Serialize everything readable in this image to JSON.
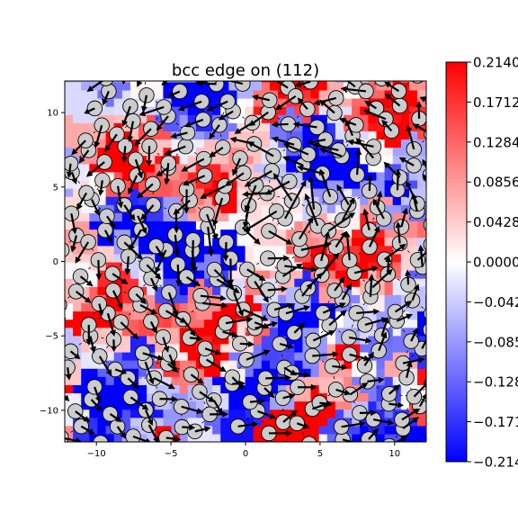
{
  "chart_data": {
    "type": "heatmap",
    "title": "bcc edge on (112)",
    "xlabel": "",
    "ylabel": "",
    "xlim": [
      -12.124,
      12.124
    ],
    "ylim": [
      -12.124,
      12.124
    ],
    "x_ticks": [
      -10,
      -5,
      0,
      5,
      10
    ],
    "y_ticks": [
      -10,
      -5,
      0,
      5,
      10
    ],
    "x_tick_labels": [
      "−10",
      "−5",
      "0",
      "5",
      "10"
    ],
    "y_tick_labels": [
      "−10",
      "−5",
      "0",
      "5",
      "10"
    ],
    "grid": false,
    "colormap": {
      "name": "bwr",
      "colors": [
        "#0000ff",
        "#ffffff",
        "#ff0000"
      ],
      "vmin": -0.214,
      "vmax": 0.214,
      "ticks": [
        0.214,
        0.1712,
        0.1284,
        0.0856,
        0.0428,
        0.0,
        -0.0428,
        -0.0856,
        -0.1284,
        -0.1712,
        -0.214
      ],
      "tick_labels": [
        "0.2140",
        "0.1712",
        "0.1284",
        "0.0856",
        "0.0428",
        "0.0000",
        "−0.0428",
        "−0.0856",
        "−0.1284",
        "−0.1712",
        "−0.2140"
      ]
    },
    "atom_style": {
      "fill": "#cccccc",
      "stroke": "#000000",
      "radius": 0.5
    },
    "arrow_color": "#000000",
    "dislocation_center": [
      2.6,
      3.0
    ],
    "lattice": {
      "a1": [
        2.3,
        0.12
      ],
      "a2": [
        0.95,
        1.9
      ],
      "origin": [
        0.3,
        -0.2
      ],
      "range": [
        -7,
        7
      ],
      "jitter": 0.35
    }
  }
}
